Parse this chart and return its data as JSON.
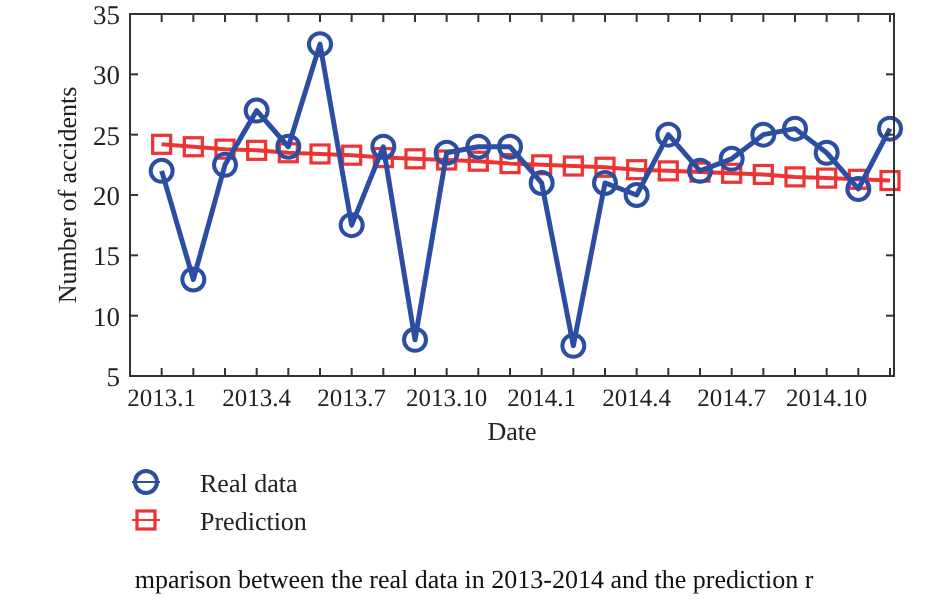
{
  "chart_data": {
    "type": "line",
    "xlabel": "Date",
    "ylabel": "Number of accidents",
    "categories": [
      "2013.1",
      null,
      null,
      "2013.4",
      null,
      null,
      "2013.7",
      null,
      null,
      "2013.10",
      null,
      null,
      "2014.1",
      null,
      null,
      "2014.4",
      null,
      null,
      "2014.7",
      null,
      null,
      "2014.10",
      null,
      null
    ],
    "series": [
      {
        "name": "Real data",
        "color": "#2b4ea2",
        "marker": "circle",
        "values": [
          22,
          13,
          22.5,
          27,
          24,
          32.5,
          17.5,
          24,
          8,
          23.5,
          24,
          24,
          21,
          7.5,
          21,
          20,
          25,
          22,
          23,
          25,
          25.5,
          23.5,
          20.5,
          25.5
        ]
      },
      {
        "name": "Prediction",
        "color": "#ee3333",
        "marker": "square",
        "values": [
          24.2,
          24.0,
          23.8,
          23.7,
          23.5,
          23.4,
          23.3,
          23.1,
          23.0,
          22.9,
          22.8,
          22.6,
          22.5,
          22.4,
          22.3,
          22.1,
          22.0,
          21.9,
          21.8,
          21.7,
          21.5,
          21.4,
          21.3,
          21.2
        ]
      }
    ],
    "ylim": [
      5,
      35
    ],
    "yticks": [
      5,
      10,
      15,
      20,
      25,
      30,
      35
    ],
    "grid": false,
    "legend": "bottom",
    "annotations": [
      "mparison between the real data in 2013-2014 and the prediction r"
    ]
  }
}
